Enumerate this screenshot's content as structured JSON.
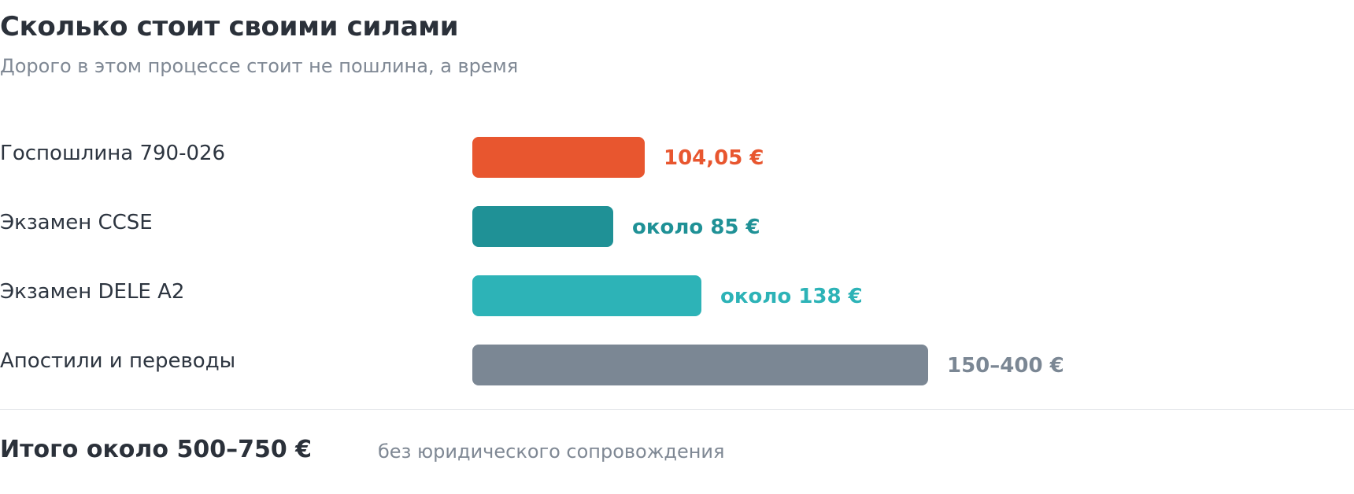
{
  "title": "Сколько стоит своими силами",
  "subtitle": "Дорого в этом процессе стоит не пошлина, а время",
  "chart_data": {
    "type": "bar",
    "orientation": "horizontal",
    "categories": [
      "Госпошлина 790-026",
      "Экзамен CCSE",
      "Экзамен DELE A2",
      "Апостили и переводы"
    ],
    "values": [
      104.05,
      85,
      138,
      275
    ],
    "value_labels": [
      "104,05 €",
      "около 85 €",
      "около 138 €",
      "150–400 €"
    ],
    "colors": [
      "#e8562f",
      "#1f9196",
      "#2db3b7",
      "#7b8794"
    ],
    "unit": "€",
    "xlim": [
      0,
      280
    ],
    "grid": false
  },
  "total": {
    "label": "Итого около 500–750 €",
    "note": "без юридического сопровождения"
  }
}
